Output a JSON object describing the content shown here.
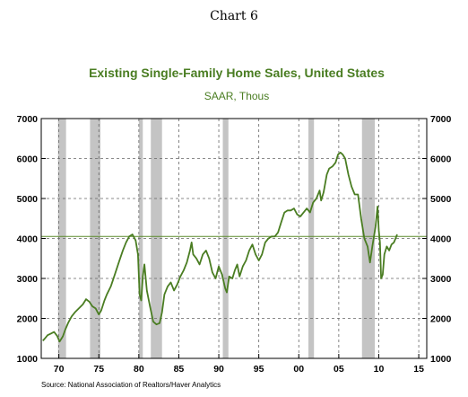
{
  "page_title": "Chart 6",
  "source": "Source:  National Association of Realtors/Haver Analytics",
  "colors": {
    "series": "#4a7d22",
    "title": "#4a7d22",
    "recession": "#c4c4c4",
    "grid": "#666666",
    "reference": "#5a8a2a"
  },
  "chart_data": {
    "type": "line",
    "title": "Existing Single-Family Home Sales, United States",
    "subtitle": "SAAR, Thous",
    "x_range": [
      1967.8,
      2016.0
    ],
    "ylim": [
      1000,
      7000
    ],
    "y_ticks": [
      1000,
      2000,
      3000,
      4000,
      5000,
      6000,
      7000
    ],
    "x_ticks": [
      {
        "value": 1970,
        "label": "70"
      },
      {
        "value": 1975,
        "label": "75"
      },
      {
        "value": 1980,
        "label": "80"
      },
      {
        "value": 1985,
        "label": "85"
      },
      {
        "value": 1990,
        "label": "90"
      },
      {
        "value": 1995,
        "label": "95"
      },
      {
        "value": 2000,
        "label": "00"
      },
      {
        "value": 2005,
        "label": "05"
      },
      {
        "value": 2010,
        "label": "10"
      },
      {
        "value": 2015,
        "label": "15"
      }
    ],
    "grid": true,
    "y_axis_both_sides": true,
    "reference_line": 4050,
    "recession_bands": [
      [
        1969.9,
        1970.9
      ],
      [
        1973.9,
        1975.2
      ],
      [
        1980.0,
        1980.5
      ],
      [
        1981.5,
        1982.9
      ],
      [
        1990.5,
        1991.2
      ],
      [
        2001.2,
        2001.9
      ],
      [
        2007.9,
        2009.5
      ]
    ],
    "series": [
      {
        "values": [
          [
            1968.0,
            1440
          ],
          [
            1968.3,
            1510
          ],
          [
            1968.6,
            1580
          ],
          [
            1969.0,
            1620
          ],
          [
            1969.4,
            1660
          ],
          [
            1969.8,
            1560
          ],
          [
            1970.1,
            1420
          ],
          [
            1970.5,
            1550
          ],
          [
            1970.8,
            1720
          ],
          [
            1971.2,
            1900
          ],
          [
            1971.6,
            2050
          ],
          [
            1972.0,
            2150
          ],
          [
            1972.5,
            2250
          ],
          [
            1973.0,
            2350
          ],
          [
            1973.4,
            2480
          ],
          [
            1973.8,
            2420
          ],
          [
            1974.2,
            2300
          ],
          [
            1974.6,
            2250
          ],
          [
            1975.0,
            2100
          ],
          [
            1975.3,
            2200
          ],
          [
            1975.7,
            2450
          ],
          [
            1976.0,
            2600
          ],
          [
            1976.5,
            2800
          ],
          [
            1977.0,
            3100
          ],
          [
            1977.5,
            3400
          ],
          [
            1978.0,
            3700
          ],
          [
            1978.4,
            3900
          ],
          [
            1978.8,
            4050
          ],
          [
            1979.2,
            4100
          ],
          [
            1979.6,
            3950
          ],
          [
            1979.9,
            3600
          ],
          [
            1980.1,
            2600
          ],
          [
            1980.3,
            2450
          ],
          [
            1980.5,
            3050
          ],
          [
            1980.7,
            3350
          ],
          [
            1981.0,
            2700
          ],
          [
            1981.4,
            2300
          ],
          [
            1981.8,
            1920
          ],
          [
            1982.2,
            1850
          ],
          [
            1982.6,
            1880
          ],
          [
            1982.9,
            2150
          ],
          [
            1983.2,
            2600
          ],
          [
            1983.6,
            2800
          ],
          [
            1984.0,
            2900
          ],
          [
            1984.4,
            2700
          ],
          [
            1984.8,
            2850
          ],
          [
            1985.2,
            3050
          ],
          [
            1985.6,
            3200
          ],
          [
            1986.0,
            3400
          ],
          [
            1986.4,
            3700
          ],
          [
            1986.6,
            3900
          ],
          [
            1986.8,
            3600
          ],
          [
            1987.2,
            3500
          ],
          [
            1987.6,
            3350
          ],
          [
            1988.0,
            3600
          ],
          [
            1988.4,
            3700
          ],
          [
            1988.8,
            3500
          ],
          [
            1989.2,
            3150
          ],
          [
            1989.6,
            3000
          ],
          [
            1990.0,
            3300
          ],
          [
            1990.4,
            3100
          ],
          [
            1990.8,
            2750
          ],
          [
            1991.0,
            2650
          ],
          [
            1991.3,
            3050
          ],
          [
            1991.7,
            3000
          ],
          [
            1992.0,
            3200
          ],
          [
            1992.3,
            3350
          ],
          [
            1992.6,
            3050
          ],
          [
            1993.0,
            3300
          ],
          [
            1993.4,
            3450
          ],
          [
            1993.8,
            3700
          ],
          [
            1994.2,
            3850
          ],
          [
            1994.6,
            3600
          ],
          [
            1995.0,
            3450
          ],
          [
            1995.4,
            3600
          ],
          [
            1995.8,
            3900
          ],
          [
            1996.2,
            4000
          ],
          [
            1996.6,
            4050
          ],
          [
            1997.0,
            4050
          ],
          [
            1997.4,
            4150
          ],
          [
            1997.8,
            4400
          ],
          [
            1998.2,
            4650
          ],
          [
            1998.6,
            4700
          ],
          [
            1999.0,
            4700
          ],
          [
            1999.4,
            4750
          ],
          [
            1999.8,
            4600
          ],
          [
            2000.2,
            4550
          ],
          [
            2000.6,
            4650
          ],
          [
            2001.0,
            4750
          ],
          [
            2001.4,
            4650
          ],
          [
            2001.8,
            4900
          ],
          [
            2002.2,
            5000
          ],
          [
            2002.6,
            5200
          ],
          [
            2002.8,
            4950
          ],
          [
            2003.1,
            5150
          ],
          [
            2003.5,
            5600
          ],
          [
            2003.8,
            5750
          ],
          [
            2004.2,
            5800
          ],
          [
            2004.6,
            5900
          ],
          [
            2004.9,
            6100
          ],
          [
            2005.2,
            6150
          ],
          [
            2005.5,
            6100
          ],
          [
            2005.8,
            6000
          ],
          [
            2006.2,
            5600
          ],
          [
            2006.6,
            5300
          ],
          [
            2007.0,
            5100
          ],
          [
            2007.4,
            5100
          ],
          [
            2007.8,
            4500
          ],
          [
            2008.2,
            4000
          ],
          [
            2008.6,
            3800
          ],
          [
            2008.9,
            3400
          ],
          [
            2009.2,
            3800
          ],
          [
            2009.6,
            4300
          ],
          [
            2009.85,
            4800
          ],
          [
            2010.0,
            4200
          ],
          [
            2010.15,
            3900
          ],
          [
            2010.3,
            3000
          ],
          [
            2010.5,
            3100
          ],
          [
            2010.7,
            3600
          ],
          [
            2011.0,
            3800
          ],
          [
            2011.3,
            3700
          ],
          [
            2011.6,
            3850
          ],
          [
            2011.9,
            3900
          ],
          [
            2012.1,
            4000
          ],
          [
            2012.3,
            4100
          ]
        ]
      }
    ]
  }
}
